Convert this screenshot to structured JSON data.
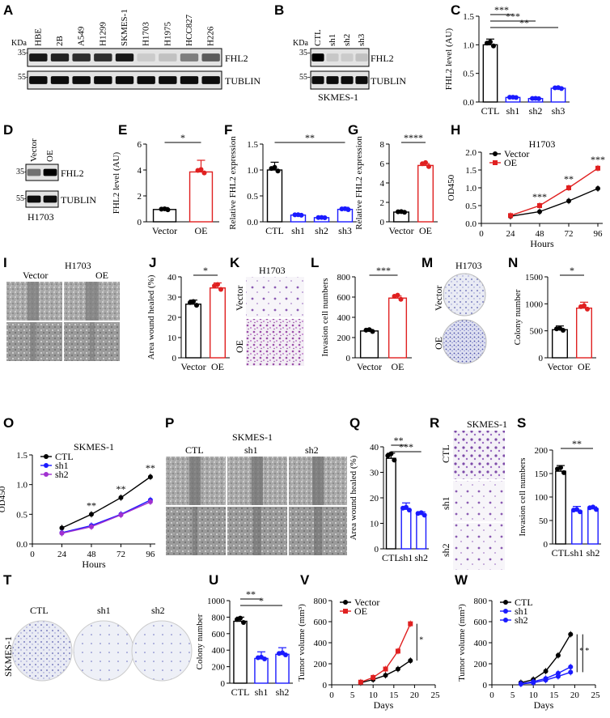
{
  "panels": {
    "A": "A",
    "B": "B",
    "C": "C",
    "D": "D",
    "E": "E",
    "F": "F",
    "G": "G",
    "H": "H",
    "I": "I",
    "J": "J",
    "K": "K",
    "L": "L",
    "M": "M",
    "N": "N",
    "O": "O",
    "P": "P",
    "Q": "Q",
    "R": "R",
    "S": "S",
    "T": "T",
    "U": "U",
    "V": "V",
    "W": "W"
  },
  "blotA": {
    "kda": "KDa",
    "m35": "35-",
    "m55": "55-",
    "lanes": [
      "HBE",
      "2B",
      "A549",
      "H1299",
      "SKMES-1",
      "H1703",
      "H1975",
      "HCC827",
      "H226"
    ],
    "fhl2": [
      0.9,
      0.85,
      0.8,
      0.8,
      0.9,
      0.1,
      0.15,
      0.45,
      0.6
    ],
    "tub": [
      0.95,
      0.95,
      0.95,
      0.95,
      0.95,
      0.95,
      0.95,
      0.95,
      0.95
    ],
    "band1": "FHL2",
    "band2": "TUBLIN"
  },
  "blotB": {
    "kda": "KDa",
    "m35": "35-",
    "m55": "55-",
    "lanes": [
      "CTL",
      "sh1",
      "sh2",
      "sh3"
    ],
    "fhl2": [
      1,
      0.12,
      0.1,
      0.15
    ],
    "tub": [
      0.95,
      0.95,
      0.95,
      0.95
    ],
    "band1": "FHL2",
    "band2": "TUBLIN",
    "cell": "SKMES-1"
  },
  "blotD": {
    "m35": "35-",
    "m55": "55-",
    "lanes": [
      "Vector",
      "OE"
    ],
    "fhl2": [
      0.5,
      1
    ],
    "tub": [
      0.95,
      0.95
    ],
    "band1": "FHL2",
    "band2": "TUBLIN",
    "cell": "H1703"
  },
  "chart_data": [
    {
      "id": "C",
      "type": "bar",
      "categories": [
        "CTL",
        "sh1",
        "sh2",
        "sh3"
      ],
      "values": [
        1.0,
        0.08,
        0.06,
        0.24
      ],
      "errors": [
        0.1,
        0.01,
        0.02,
        0.02
      ],
      "colors": [
        "#000000",
        "#1a1aff",
        "#1a1aff",
        "#1a1aff"
      ],
      "ylabel": "FHL2 level (AU)",
      "ylim": [
        0,
        1.5
      ],
      "yticks": [
        0,
        0.5,
        1.0,
        1.5
      ],
      "yticklabels": [
        "0.0",
        "0.5",
        "1.0",
        "1.5"
      ],
      "sig": [
        "***",
        "***",
        "**"
      ]
    },
    {
      "id": "E",
      "type": "bar",
      "categories": [
        "Vector",
        "OE"
      ],
      "values": [
        0.95,
        3.85
      ],
      "errors": [
        0.15,
        0.9
      ],
      "colors": [
        "#000000",
        "#e02020"
      ],
      "ylabel": "FHL2 level (AU)",
      "ylim": [
        0,
        6
      ],
      "yticks": [
        0,
        2,
        4,
        6
      ],
      "yticklabels": [
        "0",
        "2",
        "4",
        "6"
      ],
      "sig": [
        "*"
      ]
    },
    {
      "id": "F",
      "type": "bar",
      "categories": [
        "CTL",
        "sh1",
        "sh2",
        "sh3"
      ],
      "values": [
        1.0,
        0.13,
        0.08,
        0.24
      ],
      "errors": [
        0.15,
        0.02,
        0.02,
        0.04
      ],
      "colors": [
        "#000000",
        "#1a1aff",
        "#1a1aff",
        "#1a1aff"
      ],
      "ylabel": "Relative FHL2 expression",
      "ylim": [
        0,
        1.5
      ],
      "yticks": [
        0,
        0.5,
        1.0,
        1.5
      ],
      "yticklabels": [
        "0.0",
        "0.5",
        "1.0",
        "1.5"
      ],
      "sig": [
        "**"
      ]
    },
    {
      "id": "G",
      "type": "bar",
      "categories": [
        "Vector",
        "OE"
      ],
      "values": [
        1.0,
        5.8
      ],
      "errors": [
        0.05,
        0.2
      ],
      "colors": [
        "#000000",
        "#e02020"
      ],
      "ylabel": "Relative FHL2 expression",
      "ylim": [
        0,
        8
      ],
      "yticks": [
        0,
        2,
        4,
        6,
        8
      ],
      "yticklabels": [
        "0",
        "2",
        "4",
        "6",
        "8"
      ],
      "sig": [
        "****"
      ]
    },
    {
      "id": "H",
      "type": "line",
      "title": "H1703",
      "x": [
        24,
        48,
        72,
        96
      ],
      "series": [
        {
          "name": "Vector",
          "values": [
            0.2,
            0.33,
            0.63,
            0.98
          ],
          "color": "#000000"
        },
        {
          "name": "OE",
          "values": [
            0.22,
            0.5,
            1.0,
            1.55
          ],
          "color": "#e02020"
        }
      ],
      "xlabel": "Hours",
      "ylabel": "OD450",
      "xlim": [
        0,
        100
      ],
      "xticks": [
        0,
        24,
        48,
        72,
        96
      ],
      "ylim": [
        0,
        2.0
      ],
      "yticks": [
        0,
        0.5,
        1.0,
        1.5,
        2.0
      ],
      "yticklabels": [
        "0.0",
        "0.5",
        "1.0",
        "1.5",
        "2.0"
      ],
      "sig": [
        "***",
        "**",
        "***"
      ]
    },
    {
      "id": "J",
      "type": "bar",
      "categories": [
        "Vector",
        "OE"
      ],
      "values": [
        26.5,
        34.5
      ],
      "errors": [
        2,
        2.5
      ],
      "colors": [
        "#000000",
        "#e02020"
      ],
      "ylabel": "Area wound healed (%)",
      "ylim": [
        0,
        40
      ],
      "yticks": [
        0,
        10,
        20,
        30,
        40
      ],
      "yticklabels": [
        "0",
        "10",
        "20",
        "30",
        "40"
      ],
      "sig": [
        "*"
      ]
    },
    {
      "id": "L",
      "type": "bar",
      "categories": [
        "Vector",
        "OE"
      ],
      "values": [
        265,
        590
      ],
      "errors": [
        15,
        20
      ],
      "colors": [
        "#000000",
        "#e02020"
      ],
      "ylabel": "Invasion cell numbers",
      "ylim": [
        0,
        800
      ],
      "yticks": [
        0,
        200,
        400,
        600,
        800
      ],
      "yticklabels": [
        "0",
        "200",
        "400",
        "600",
        "800"
      ],
      "sig": [
        "***"
      ]
    },
    {
      "id": "N",
      "type": "bar",
      "categories": [
        "Vector",
        "OE"
      ],
      "values": [
        520,
        920
      ],
      "errors": [
        70,
        110
      ],
      "colors": [
        "#000000",
        "#e02020"
      ],
      "ylabel": "Colony number",
      "ylim": [
        0,
        1500
      ],
      "yticks": [
        0,
        500,
        1000,
        1500
      ],
      "yticklabels": [
        "0",
        "500",
        "1000",
        "1500"
      ],
      "sig": [
        "*"
      ]
    },
    {
      "id": "O",
      "type": "line",
      "title": "SKMES-1",
      "x": [
        24,
        48,
        72,
        96
      ],
      "series": [
        {
          "name": "CTL",
          "values": [
            0.27,
            0.5,
            0.78,
            1.13
          ],
          "color": "#000000"
        },
        {
          "name": "sh1",
          "values": [
            0.19,
            0.31,
            0.5,
            0.74
          ],
          "color": "#1a1aff"
        },
        {
          "name": "sh2",
          "values": [
            0.18,
            0.29,
            0.49,
            0.71
          ],
          "color": "#a030d0"
        }
      ],
      "xlabel": "Hours",
      "ylabel": "OD450",
      "xlim": [
        0,
        100
      ],
      "xticks": [
        0,
        24,
        48,
        72,
        96
      ],
      "ylim": [
        0,
        1.5
      ],
      "yticks": [
        0,
        0.5,
        1.0,
        1.5
      ],
      "yticklabels": [
        "0.0",
        "0.5",
        "1.0",
        "1.5"
      ],
      "sig": [
        "**",
        "**",
        "**"
      ]
    },
    {
      "id": "Q",
      "type": "bar",
      "categories": [
        "CTL",
        "sh1",
        "sh2"
      ],
      "values": [
        35.5,
        15.5,
        13.5
      ],
      "errors": [
        2,
        2.5,
        1
      ],
      "colors": [
        "#000000",
        "#1a1aff",
        "#1a1aff"
      ],
      "ylabel": "Area wound healed (%)",
      "ylim": [
        0,
        40
      ],
      "yticks": [
        0,
        10,
        20,
        30,
        40
      ],
      "yticklabels": [
        "0",
        "10",
        "20",
        "30",
        "40"
      ],
      "sig": [
        "**",
        "***"
      ]
    },
    {
      "id": "S",
      "type": "bar",
      "categories": [
        "CTL",
        "sh1",
        "sh2"
      ],
      "values": [
        155,
        70,
        75
      ],
      "errors": [
        12,
        10,
        4
      ],
      "colors": [
        "#000000",
        "#1a1aff",
        "#1a1aff"
      ],
      "ylabel": "Invasion cell numbers",
      "ylim": [
        0,
        200
      ],
      "yticks": [
        0,
        50,
        100,
        150,
        200
      ],
      "yticklabels": [
        "0",
        "50",
        "100",
        "150",
        "200"
      ],
      "sig": [
        "**"
      ]
    },
    {
      "id": "U",
      "type": "bar",
      "categories": [
        "CTL",
        "sh1",
        "sh2"
      ],
      "values": [
        750,
        300,
        350
      ],
      "errors": [
        50,
        80,
        80
      ],
      "colors": [
        "#000000",
        "#1a1aff",
        "#1a1aff"
      ],
      "ylabel": "Colony number",
      "ylim": [
        0,
        1000
      ],
      "yticks": [
        0,
        200,
        400,
        600,
        800,
        1000
      ],
      "yticklabels": [
        "0",
        "200",
        "400",
        "600",
        "800",
        "1000"
      ],
      "sig": [
        "**",
        "*"
      ]
    },
    {
      "id": "V",
      "type": "line",
      "x": [
        7,
        10,
        13,
        16,
        19
      ],
      "series": [
        {
          "name": "Vector",
          "values": [
            20,
            50,
            90,
            150,
            230
          ],
          "color": "#000000"
        },
        {
          "name": "OE",
          "values": [
            25,
            70,
            150,
            320,
            580
          ],
          "color": "#e02020"
        }
      ],
      "xlabel": "Days",
      "ylabel": "Tumor volume (mm³)",
      "xlim": [
        0,
        25
      ],
      "xticks": [
        0,
        5,
        10,
        15,
        20,
        25
      ],
      "ylim": [
        0,
        800
      ],
      "yticks": [
        0,
        200,
        400,
        600,
        800
      ],
      "yticklabels": [
        "0",
        "200",
        "400",
        "600",
        "800"
      ],
      "sig": [
        "*"
      ]
    },
    {
      "id": "W",
      "type": "line",
      "x": [
        7,
        10,
        13,
        16,
        19
      ],
      "series": [
        {
          "name": "CTL",
          "values": [
            20,
            50,
            130,
            280,
            480
          ],
          "color": "#000000"
        },
        {
          "name": "sh1",
          "values": [
            10,
            30,
            60,
            110,
            170
          ],
          "color": "#1a1aff"
        },
        {
          "name": "sh2",
          "values": [
            8,
            20,
            45,
            80,
            120
          ],
          "color": "#1a1aff"
        }
      ],
      "xlabel": "Days",
      "ylabel": "Tumor volume (mm³)",
      "xlim": [
        0,
        25
      ],
      "xticks": [
        0,
        5,
        10,
        15,
        20,
        25
      ],
      "ylim": [
        0,
        800
      ],
      "yticks": [
        0,
        200,
        400,
        600,
        800
      ],
      "yticklabels": [
        "0",
        "200",
        "400",
        "600",
        "800"
      ],
      "sig": [
        "*",
        "*"
      ]
    }
  ],
  "imgI": {
    "title": "H1703",
    "col1": "Vector",
    "col2": "OE"
  },
  "imgK": {
    "title": "H1703",
    "row1": "Vector",
    "row2": "OE"
  },
  "imgM": {
    "title": "H1703",
    "row1": "Vector",
    "row2": "OE"
  },
  "imgP": {
    "title": "SKMES-1",
    "c1": "CTL",
    "c2": "sh1",
    "c3": "sh2"
  },
  "imgR": {
    "title": "SKMES-1",
    "r1": "CTL",
    "r2": "sh1",
    "r3": "sh2"
  },
  "imgT": {
    "side": "SKMES-1",
    "c1": "CTL",
    "c2": "sh1",
    "c3": "sh2"
  }
}
